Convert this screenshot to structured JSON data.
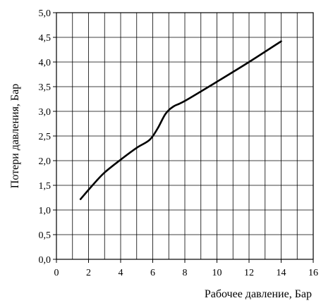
{
  "chart_data": {
    "type": "line",
    "xlabel": "Рабочее давление, Бар",
    "ylabel": "Потери давления, Бар",
    "xlim": [
      0,
      16
    ],
    "ylim": [
      0,
      5
    ],
    "x_ticks": [
      0,
      2,
      4,
      6,
      8,
      10,
      12,
      14,
      16
    ],
    "x_tick_labels": [
      "0",
      "2",
      "4",
      "6",
      "8",
      "10",
      "12",
      "14",
      "16"
    ],
    "y_ticks": [
      0,
      0.5,
      1,
      1.5,
      2,
      2.5,
      3,
      3.5,
      4,
      4.5,
      5
    ],
    "y_tick_labels": [
      "0,0",
      "0,5",
      "1,0",
      "1,5",
      "2,0",
      "2,5",
      "3,0",
      "3,5",
      "4,0",
      "4,5",
      "5,0"
    ],
    "grid": true,
    "grid_x_step": 1,
    "grid_y_step": 0.5,
    "line_color": "#000000",
    "series": [
      {
        "x": [
          1.5,
          2.3,
          3.0,
          4.0,
          5.0,
          5.8,
          6.3,
          6.8,
          7.3,
          8.0,
          10.0,
          12.0,
          14.0
        ],
        "values": [
          1.22,
          1.52,
          1.76,
          2.02,
          2.26,
          2.42,
          2.65,
          2.95,
          3.1,
          3.21,
          3.6,
          4.0,
          4.42
        ]
      }
    ]
  }
}
